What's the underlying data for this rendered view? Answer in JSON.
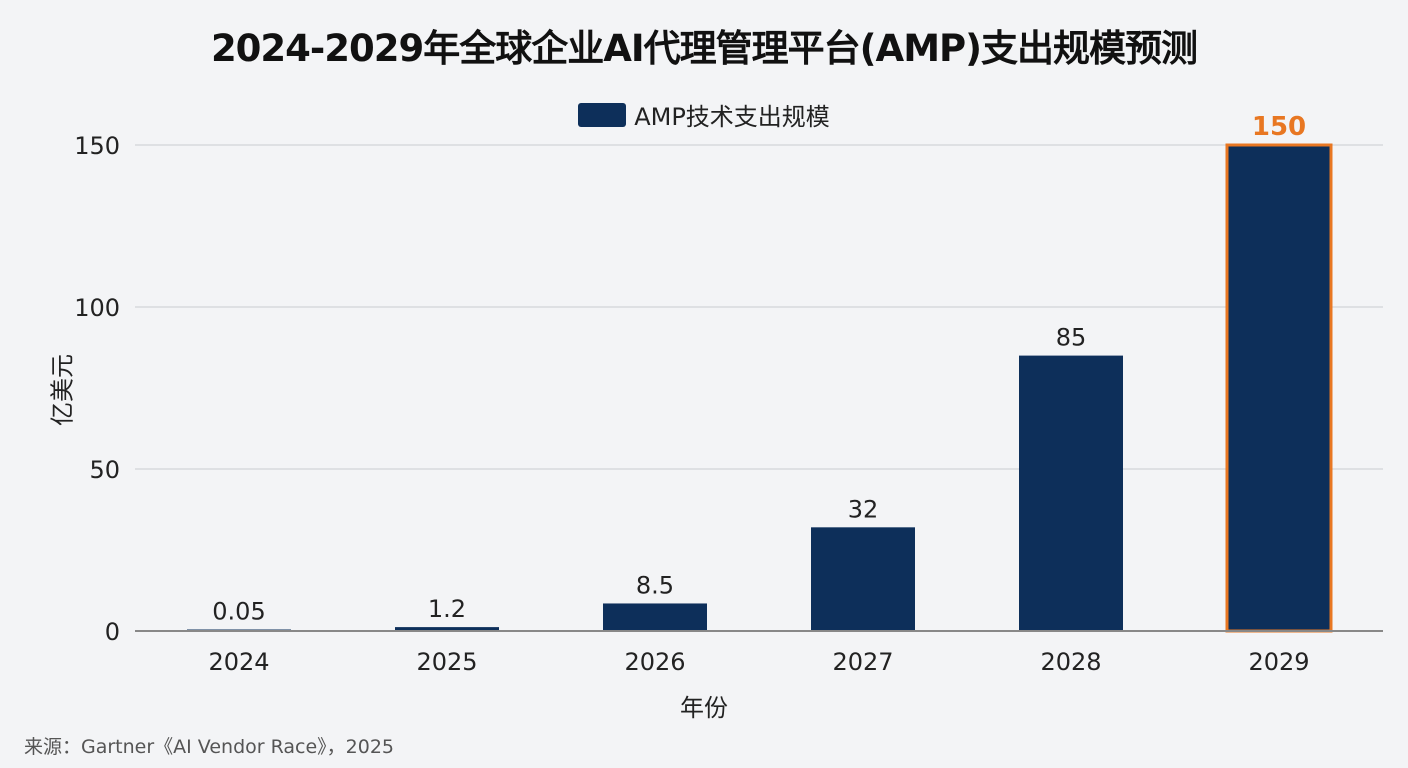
{
  "chart_data": {
    "type": "bar",
    "title": "2024-2029年全球企业AI代理管理平台(AMP)支出规模预测",
    "xlabel": "年份",
    "ylabel": "亿美元",
    "categories": [
      "2024",
      "2025",
      "2026",
      "2027",
      "2028",
      "2029"
    ],
    "series": [
      {
        "name": "AMP技术支出规模",
        "values": [
          0.05,
          1.2,
          8.5,
          32,
          85,
          150
        ]
      }
    ],
    "data_labels": [
      "0.05",
      "1.2",
      "8.5",
      "32",
      "85",
      "150"
    ],
    "ylim": [
      0,
      150
    ],
    "yticks": [
      0,
      50,
      100,
      150
    ],
    "grid": true,
    "legend": "top-center",
    "highlight": {
      "category": "2029",
      "border_color": "#e87722",
      "label_color": "#e87722"
    },
    "bar_color": "#0d2f5a",
    "source": "来源：Gartner《AI Vendor Race》，2025"
  }
}
